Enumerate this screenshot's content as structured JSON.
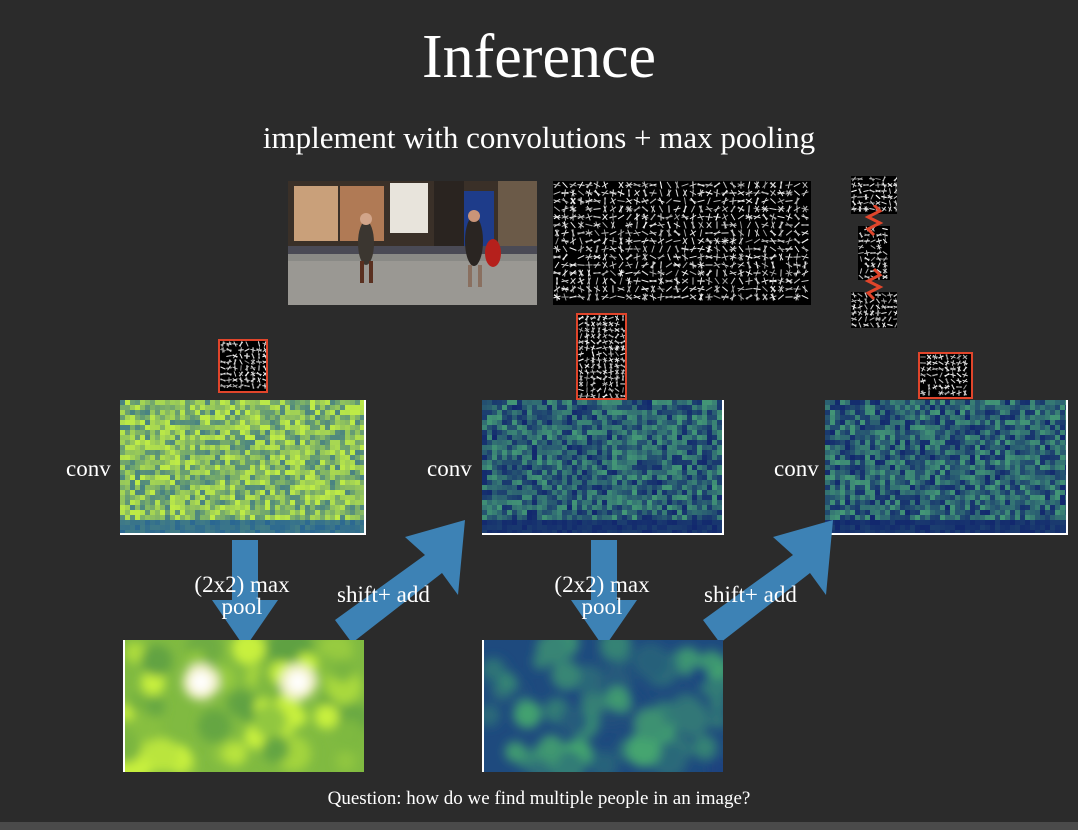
{
  "slide": {
    "title": "Inference",
    "subtitle": "implement with convolutions + max pooling",
    "question": "Question: how do we find multiple people in an image?"
  },
  "labels": {
    "conv": "conv",
    "pool_line1": "(2x2) max",
    "pool_line2": "pool",
    "shift": "shift+ add"
  },
  "colors": {
    "background": "#2b2b2b",
    "arrow": "#3d82b5",
    "filter_border": "#e0452b",
    "green_map": "#7cc94a",
    "blue_map": "#1f4f9a"
  },
  "icons": [
    "photo-street-scene",
    "hog-feature-image",
    "part-filter-chain",
    "arrow-down",
    "arrow-diagonal"
  ]
}
